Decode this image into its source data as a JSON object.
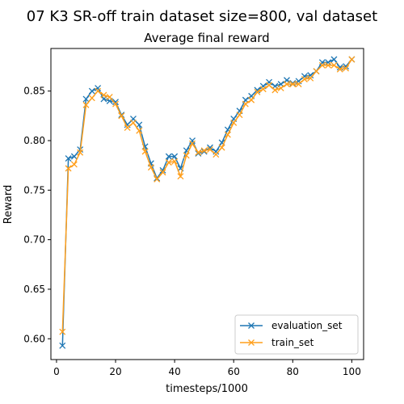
{
  "figure_title": "07 K3 SR-off train dataset size=800, val dataset",
  "chart_data": {
    "type": "line",
    "title": "Average final reward",
    "xlabel": "timesteps/1000",
    "ylabel": "Reward",
    "xlim": [
      -1.9,
      104
    ],
    "ylim": [
      0.579,
      0.893
    ],
    "xticks": [
      0,
      20,
      40,
      60,
      80,
      100
    ],
    "yticks": [
      0.6,
      0.65,
      0.7,
      0.75,
      0.8,
      0.85
    ],
    "xtick_labels": [
      "0",
      "20",
      "40",
      "60",
      "80",
      "100"
    ],
    "ytick_labels": [
      "0.60",
      "0.65",
      "0.70",
      "0.75",
      "0.80",
      "0.85"
    ],
    "grid": false,
    "legend_position": "lower-right",
    "x": [
      2,
      4,
      6,
      8,
      10,
      12,
      14,
      16,
      18,
      20,
      22,
      24,
      26,
      28,
      30,
      32,
      34,
      36,
      38,
      40,
      42,
      44,
      46,
      48,
      50,
      52,
      54,
      56,
      58,
      60,
      62,
      64,
      66,
      68,
      70,
      72,
      74,
      76,
      78,
      80,
      82,
      84,
      86,
      88,
      90,
      92,
      94,
      96,
      98,
      100
    ],
    "series": [
      {
        "name": "evaluation_set",
        "color": "#1f77b4",
        "marker": "x",
        "values": [
          0.593,
          0.782,
          0.784,
          0.791,
          0.842,
          0.85,
          0.853,
          0.842,
          0.84,
          0.839,
          0.826,
          0.816,
          0.822,
          0.816,
          0.794,
          0.777,
          0.762,
          0.77,
          0.784,
          0.784,
          0.772,
          0.79,
          0.8,
          0.787,
          0.789,
          0.793,
          0.789,
          0.798,
          0.811,
          0.822,
          0.83,
          0.841,
          0.845,
          0.851,
          0.855,
          0.859,
          0.855,
          0.857,
          0.861,
          0.858,
          0.86,
          0.865,
          0.866,
          0.87,
          0.879,
          0.879,
          0.882,
          0.874,
          0.875,
          0.882
        ]
      },
      {
        "name": "train_set",
        "color": "#ff9f1c",
        "marker": "x",
        "values": [
          0.607,
          0.772,
          0.776,
          0.788,
          0.836,
          0.843,
          0.85,
          0.846,
          0.844,
          0.837,
          0.825,
          0.813,
          0.818,
          0.81,
          0.789,
          0.773,
          0.761,
          0.768,
          0.778,
          0.779,
          0.764,
          0.785,
          0.797,
          0.788,
          0.79,
          0.791,
          0.786,
          0.793,
          0.806,
          0.818,
          0.826,
          0.837,
          0.841,
          0.849,
          0.852,
          0.856,
          0.851,
          0.853,
          0.857,
          0.857,
          0.857,
          0.862,
          0.863,
          0.87,
          0.876,
          0.876,
          0.876,
          0.872,
          0.873,
          0.882
        ]
      }
    ]
  }
}
